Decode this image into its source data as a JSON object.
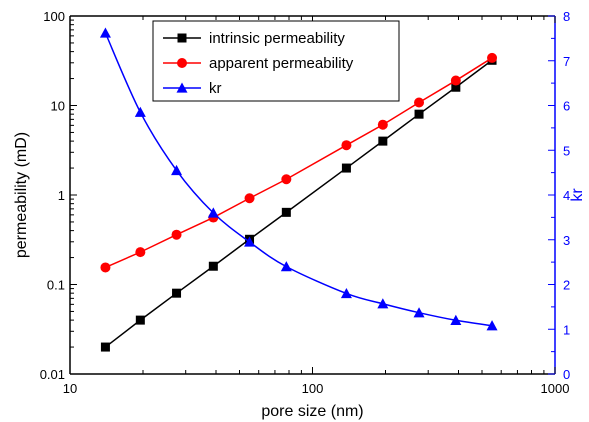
{
  "chart_data": {
    "type": "line",
    "xlabel": "pore size (nm)",
    "ylabel": "permeability (mD)",
    "y2label": "kr",
    "xscale": "log",
    "yscale": "log",
    "xlim": [
      10,
      1000
    ],
    "ylim": [
      0.01,
      100
    ],
    "y2lim": [
      0,
      8
    ],
    "x_ticks": [
      "10",
      "100",
      "1000"
    ],
    "y_ticks": [
      "0.01",
      "0.1",
      "1",
      "10",
      "100"
    ],
    "y2_ticks": [
      "0",
      "1",
      "2",
      "3",
      "4",
      "5",
      "6",
      "7",
      "8"
    ],
    "legend_position": "top-center",
    "x": [
      14,
      19.5,
      27.5,
      39,
      55,
      78,
      138,
      195,
      275,
      390,
      550
    ],
    "series": [
      {
        "name": "intrinsic permeability",
        "axis": "left",
        "color": "#000000",
        "marker": "square",
        "values": [
          0.02,
          0.04,
          0.08,
          0.16,
          0.32,
          0.64,
          2.0,
          4.0,
          8.0,
          16.0,
          32.0
        ]
      },
      {
        "name": "apparent permeability",
        "axis": "left",
        "color": "#ff0000",
        "marker": "circle",
        "values": [
          0.155,
          0.23,
          0.36,
          0.56,
          0.92,
          1.5,
          3.6,
          6.1,
          10.8,
          19.0,
          34.0
        ]
      },
      {
        "name": "kr",
        "axis": "right",
        "color": "#0000ff",
        "marker": "triangle",
        "values": [
          7.62,
          5.85,
          4.55,
          3.6,
          2.95,
          2.4,
          1.8,
          1.57,
          1.37,
          1.2,
          1.08
        ]
      }
    ]
  }
}
